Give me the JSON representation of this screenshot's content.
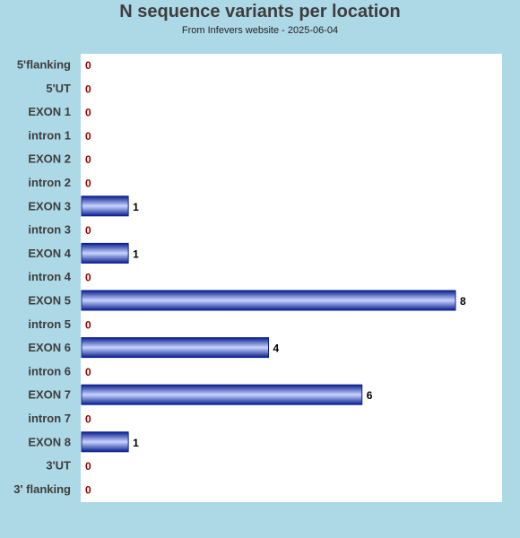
{
  "colors": {
    "background": "#add8e6",
    "plot_background": "#ffffff",
    "bar_dark": "#0a1f8f",
    "bar_light": "#c8d4ff",
    "zero_label": "#8b0000",
    "value_label": "#000000",
    "category_label": "#3d3d3d"
  },
  "chart_data": {
    "type": "bar",
    "orientation": "horizontal",
    "title": "N sequence variants per location",
    "subtitle": "From Infevers website - 2025-06-04",
    "xlabel": "",
    "ylabel": "",
    "grid": false,
    "xlim": [
      0,
      8.8
    ],
    "categories": [
      "5'flanking",
      "5'UT",
      "EXON 1",
      "intron 1",
      "EXON 2",
      "intron 2",
      "EXON 3",
      "intron 3",
      "EXON 4",
      "intron 4",
      "EXON 5",
      "intron 5",
      "EXON 6",
      "intron 6",
      "EXON 7",
      "intron 7",
      "EXON 8",
      "3'UT",
      "3' flanking"
    ],
    "values": [
      0,
      0,
      0,
      0,
      0,
      0,
      1,
      0,
      1,
      0,
      8,
      0,
      4,
      0,
      6,
      0,
      1,
      0,
      0
    ]
  }
}
